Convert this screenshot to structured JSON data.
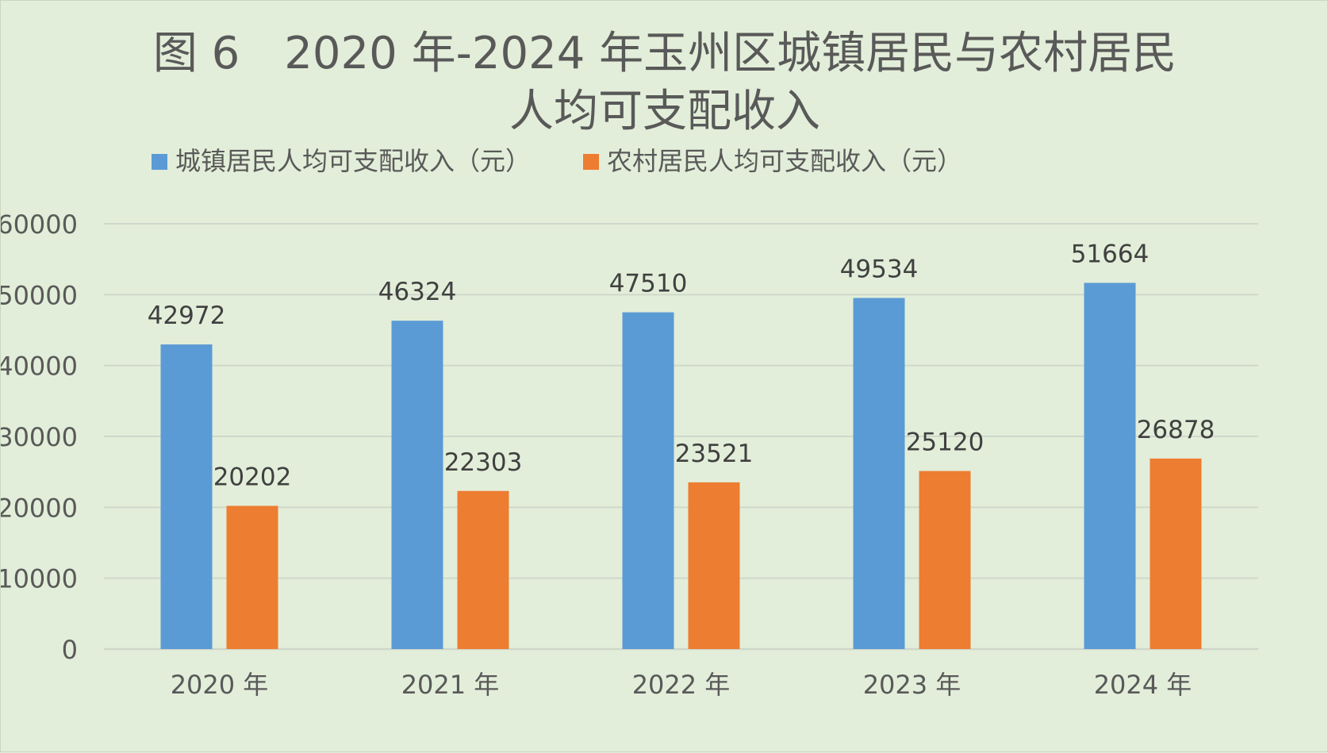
{
  "chart_data": {
    "type": "bar",
    "title_lines": [
      "图 6　2020 年-2024 年玉州区城镇居民与农村居民",
      "人均可支配收入"
    ],
    "categories": [
      "2020 年",
      "2021 年",
      "2022 年",
      "2023 年",
      "2024 年"
    ],
    "series": [
      {
        "name": "城镇居民人均可支配收入（元）",
        "color": "#5b9bd5",
        "values": [
          42972,
          46324,
          47510,
          49534,
          51664
        ]
      },
      {
        "name": "农村居民人均可支配收入（元）",
        "color": "#ed7d31",
        "values": [
          20202,
          22303,
          23521,
          25120,
          26878
        ]
      }
    ],
    "ylim": [
      0,
      60000
    ],
    "yticks": [
      0,
      10000,
      20000,
      30000,
      40000,
      50000,
      60000
    ],
    "legend_position": "top",
    "grid": true,
    "data_labels": true
  }
}
